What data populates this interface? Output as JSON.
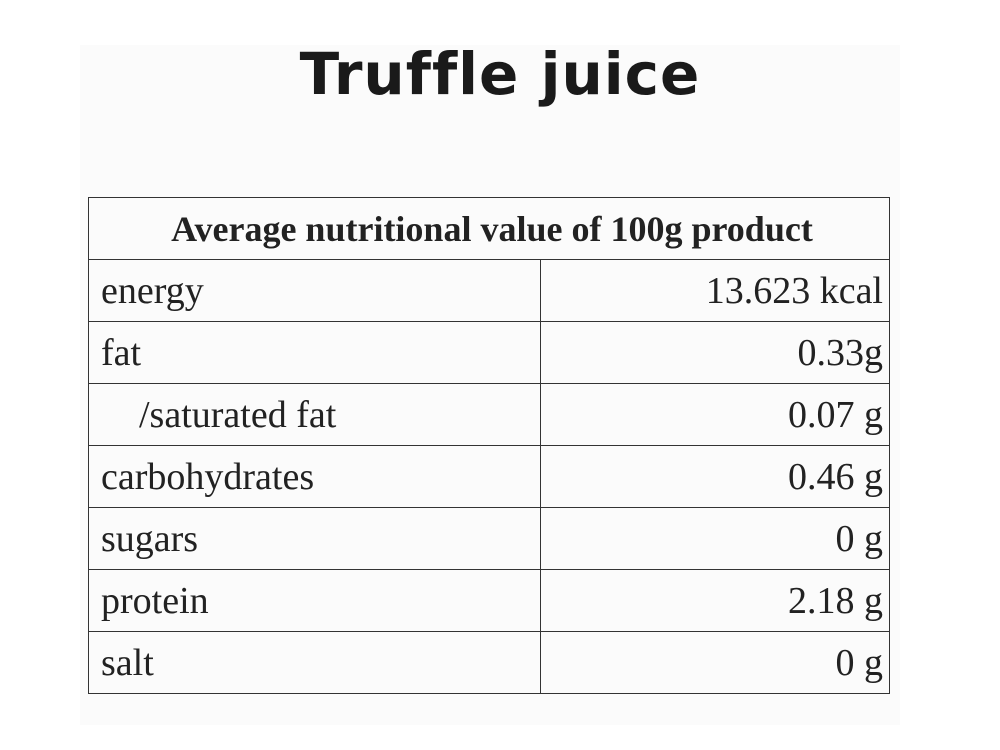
{
  "header": {
    "title": "Truffle juice"
  },
  "table": {
    "caption": "Average nutritional value of 100g product",
    "rows": [
      [
        "energy",
        "13.623 kcal"
      ],
      [
        "fat",
        "0.33g"
      ],
      [
        "/saturated fat",
        "0.07 g"
      ],
      [
        "carbohydrates",
        "0.46 g"
      ],
      [
        "sugars",
        "0 g"
      ],
      [
        "protein",
        "2.18 g"
      ],
      [
        "salt",
        "0 g"
      ]
    ]
  }
}
